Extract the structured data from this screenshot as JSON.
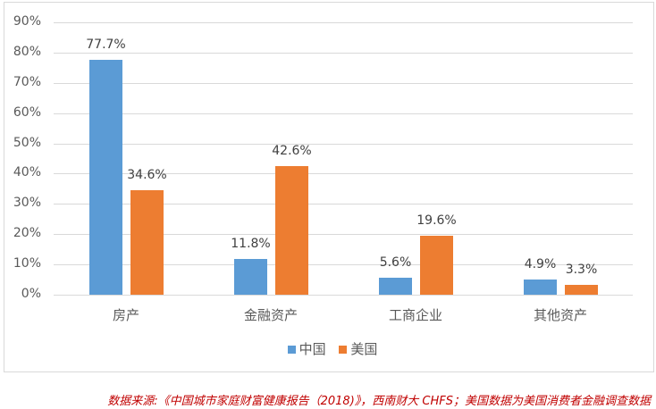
{
  "chart_data": {
    "type": "bar",
    "title": "",
    "categories": [
      "房产",
      "金融资产",
      "工商企业",
      "其他资产"
    ],
    "series": [
      {
        "name": "中国",
        "color": "#5b9bd5",
        "values": [
          77.7,
          11.8,
          5.6,
          4.9
        ],
        "labels": [
          "77.7%",
          "11.8%",
          "5.6%",
          "4.9%"
        ]
      },
      {
        "name": "美国",
        "color": "#ed7d31",
        "values": [
          34.6,
          42.6,
          19.6,
          3.3
        ],
        "labels": [
          "34.6%",
          "42.6%",
          "19.6%",
          "3.3%"
        ]
      }
    ],
    "yticks": [
      "0%",
      "10%",
      "20%",
      "30%",
      "40%",
      "50%",
      "60%",
      "70%",
      "80%",
      "90%"
    ],
    "ylim": [
      0,
      90
    ],
    "xlabel": "",
    "ylabel": "",
    "grid": true,
    "legend_position": "bottom"
  },
  "source_note": "数据来源:《中国城市家庭财富健康报告（2018)》，西南财大 CHFS；美国数据为美国消费者金融调查数据"
}
